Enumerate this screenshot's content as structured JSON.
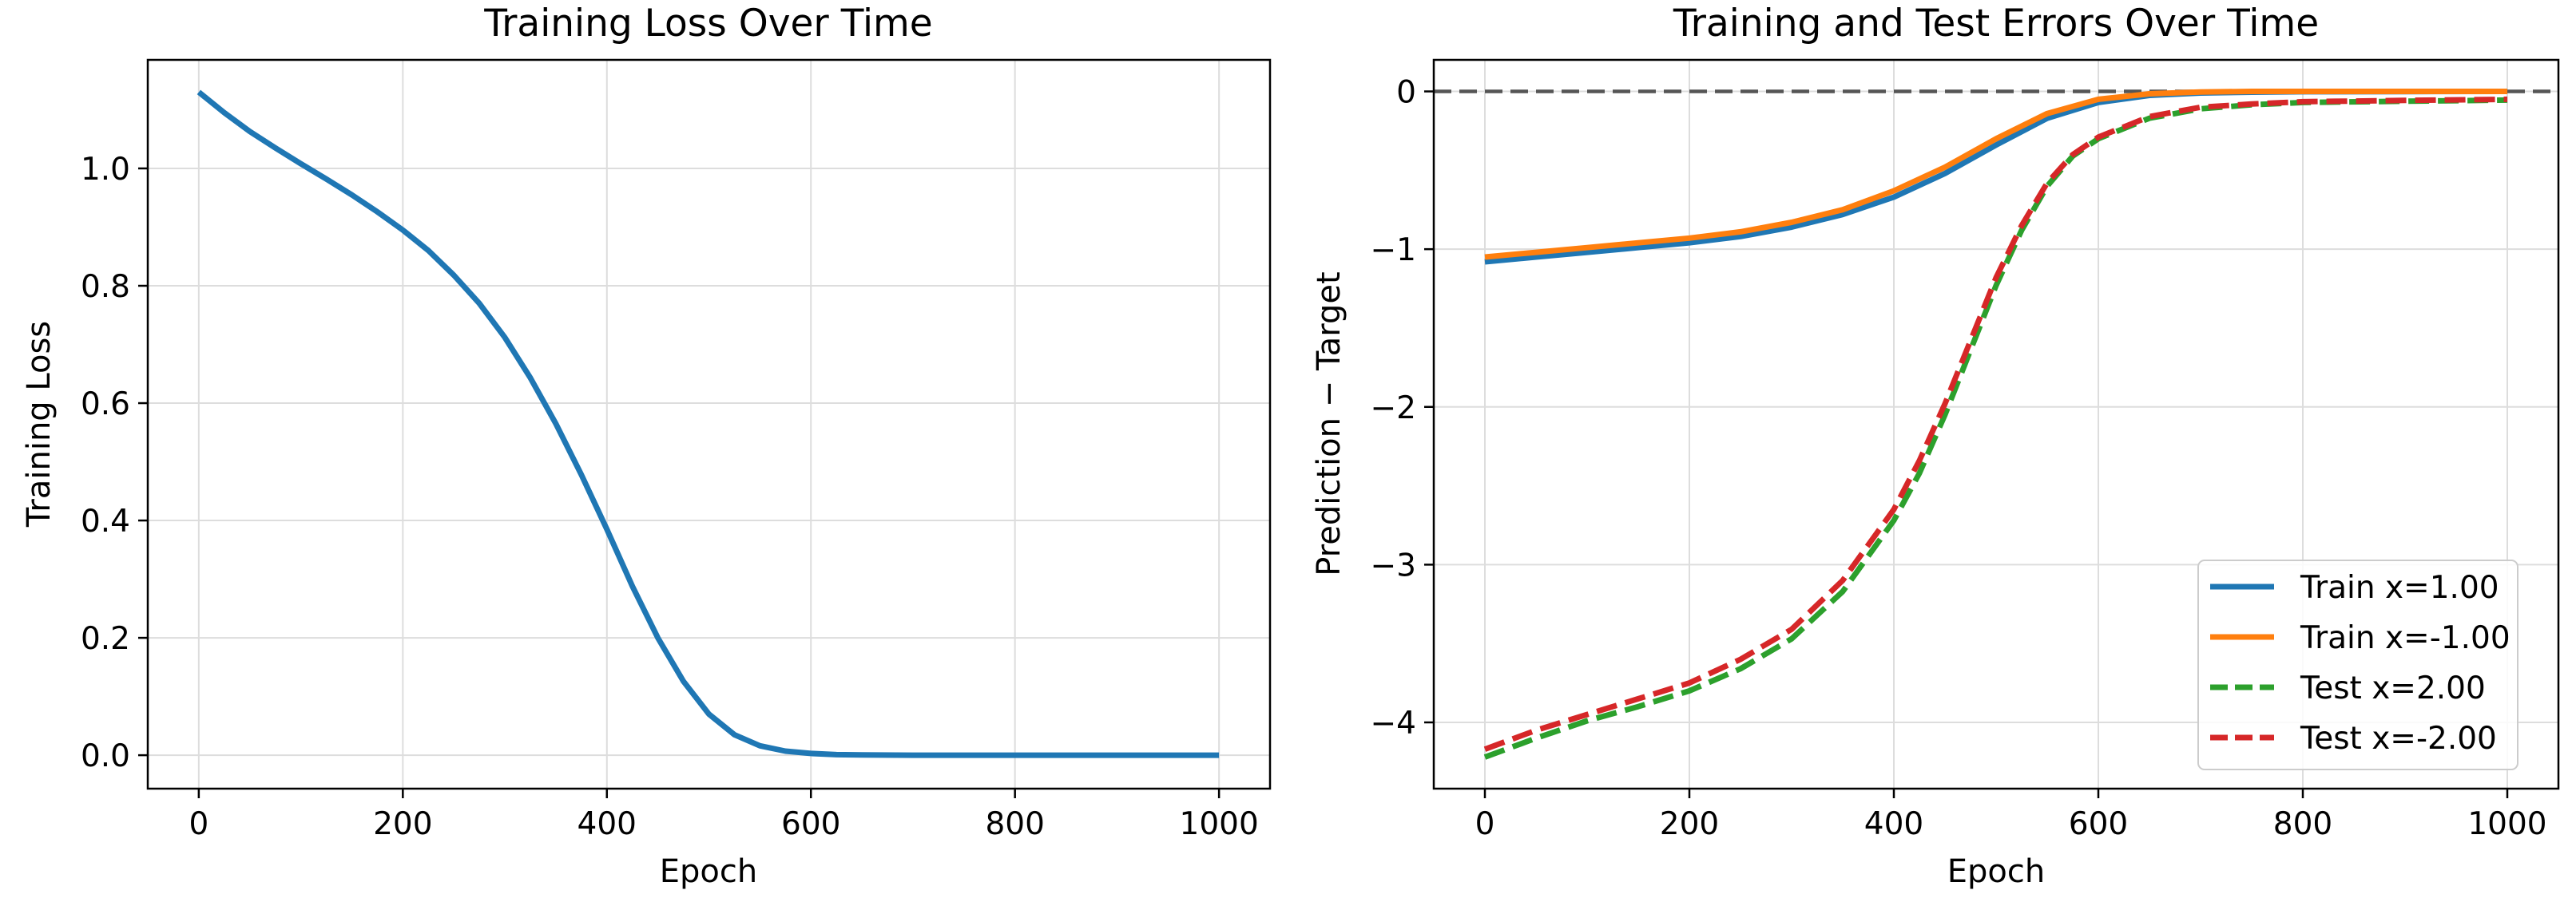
{
  "chart_data": [
    {
      "type": "line",
      "title": "Training Loss Over Time",
      "xlabel": "Epoch",
      "ylabel": "Training Loss",
      "xlim": [
        -50,
        1050
      ],
      "ylim": [
        -0.057,
        1.185
      ],
      "xticks": [
        0,
        200,
        400,
        600,
        800,
        1000
      ],
      "yticks": [
        0.0,
        0.2,
        0.4,
        0.6,
        0.8,
        1.0
      ],
      "ytick_labels": [
        "0.0",
        "0.2",
        "0.4",
        "0.6",
        "0.8",
        "1.0"
      ],
      "grid": true,
      "legend": null,
      "series": [
        {
          "name": "",
          "color": "#1f77b4",
          "dash": "solid",
          "x": [
            0,
            25,
            50,
            75,
            100,
            125,
            150,
            175,
            200,
            225,
            250,
            275,
            300,
            325,
            350,
            375,
            400,
            425,
            450,
            475,
            500,
            525,
            550,
            575,
            600,
            625,
            650,
            700,
            800,
            900,
            1000
          ],
          "y": [
            1.13,
            1.095,
            1.063,
            1.035,
            1.008,
            0.982,
            0.955,
            0.926,
            0.895,
            0.86,
            0.818,
            0.77,
            0.712,
            0.643,
            0.565,
            0.478,
            0.385,
            0.288,
            0.2,
            0.126,
            0.07,
            0.035,
            0.016,
            0.007,
            0.003,
            0.001,
            0.0005,
            0.0,
            0.0,
            0.0,
            0.0
          ]
        }
      ]
    },
    {
      "type": "line",
      "title": "Training and Test Errors Over Time",
      "xlabel": "Epoch",
      "ylabel": "Prediction − Target",
      "xlim": [
        -50,
        1050
      ],
      "ylim": [
        -4.42,
        0.2
      ],
      "xticks": [
        0,
        200,
        400,
        600,
        800,
        1000
      ],
      "yticks": [
        0,
        -1,
        -2,
        -3,
        -4
      ],
      "ytick_labels": [
        "0",
        "−1",
        "−2",
        "−3",
        "−4"
      ],
      "grid": true,
      "reference_line": {
        "y": 0,
        "color": "#555555",
        "dash": "dashed"
      },
      "legend": "lower-right",
      "series": [
        {
          "name": "Train x=1.00",
          "color": "#1f77b4",
          "dash": "solid",
          "x": [
            0,
            50,
            100,
            150,
            200,
            250,
            300,
            350,
            400,
            450,
            500,
            550,
            600,
            650,
            700,
            750,
            800,
            900,
            1000
          ],
          "y": [
            -1.08,
            -1.05,
            -1.02,
            -0.99,
            -0.96,
            -0.92,
            -0.86,
            -0.78,
            -0.67,
            -0.52,
            -0.34,
            -0.17,
            -0.07,
            -0.025,
            -0.01,
            -0.005,
            -0.002,
            -0.001,
            0.0
          ]
        },
        {
          "name": "Train x=-1.00",
          "color": "#ff7f0e",
          "dash": "solid",
          "x": [
            0,
            50,
            100,
            150,
            200,
            250,
            300,
            350,
            400,
            450,
            500,
            550,
            600,
            650,
            700,
            750,
            800,
            900,
            1000
          ],
          "y": [
            -1.05,
            -1.02,
            -0.99,
            -0.96,
            -0.93,
            -0.89,
            -0.83,
            -0.75,
            -0.63,
            -0.48,
            -0.3,
            -0.14,
            -0.05,
            -0.015,
            -0.004,
            0.0,
            0.0,
            0.0,
            0.0
          ]
        },
        {
          "name": "Test x=2.00",
          "color": "#2ca02c",
          "dash": "dashed",
          "x": [
            0,
            50,
            100,
            150,
            200,
            250,
            300,
            350,
            400,
            425,
            450,
            475,
            500,
            525,
            550,
            575,
            600,
            650,
            700,
            750,
            800,
            900,
            1000
          ],
          "y": [
            -4.22,
            -4.1,
            -3.99,
            -3.9,
            -3.8,
            -3.66,
            -3.47,
            -3.17,
            -2.72,
            -2.42,
            -2.05,
            -1.64,
            -1.23,
            -0.88,
            -0.6,
            -0.41,
            -0.3,
            -0.17,
            -0.11,
            -0.085,
            -0.07,
            -0.062,
            -0.055
          ]
        },
        {
          "name": "Test x=-2.00",
          "color": "#d62728",
          "dash": "dashed",
          "x": [
            0,
            50,
            100,
            150,
            200,
            250,
            300,
            350,
            400,
            425,
            450,
            475,
            500,
            525,
            550,
            575,
            600,
            650,
            700,
            750,
            800,
            900,
            1000
          ],
          "y": [
            -4.17,
            -4.05,
            -3.95,
            -3.85,
            -3.75,
            -3.6,
            -3.41,
            -3.1,
            -2.65,
            -2.34,
            -1.98,
            -1.58,
            -1.18,
            -0.85,
            -0.58,
            -0.4,
            -0.29,
            -0.16,
            -0.1,
            -0.08,
            -0.065,
            -0.057,
            -0.05
          ]
        }
      ]
    }
  ]
}
